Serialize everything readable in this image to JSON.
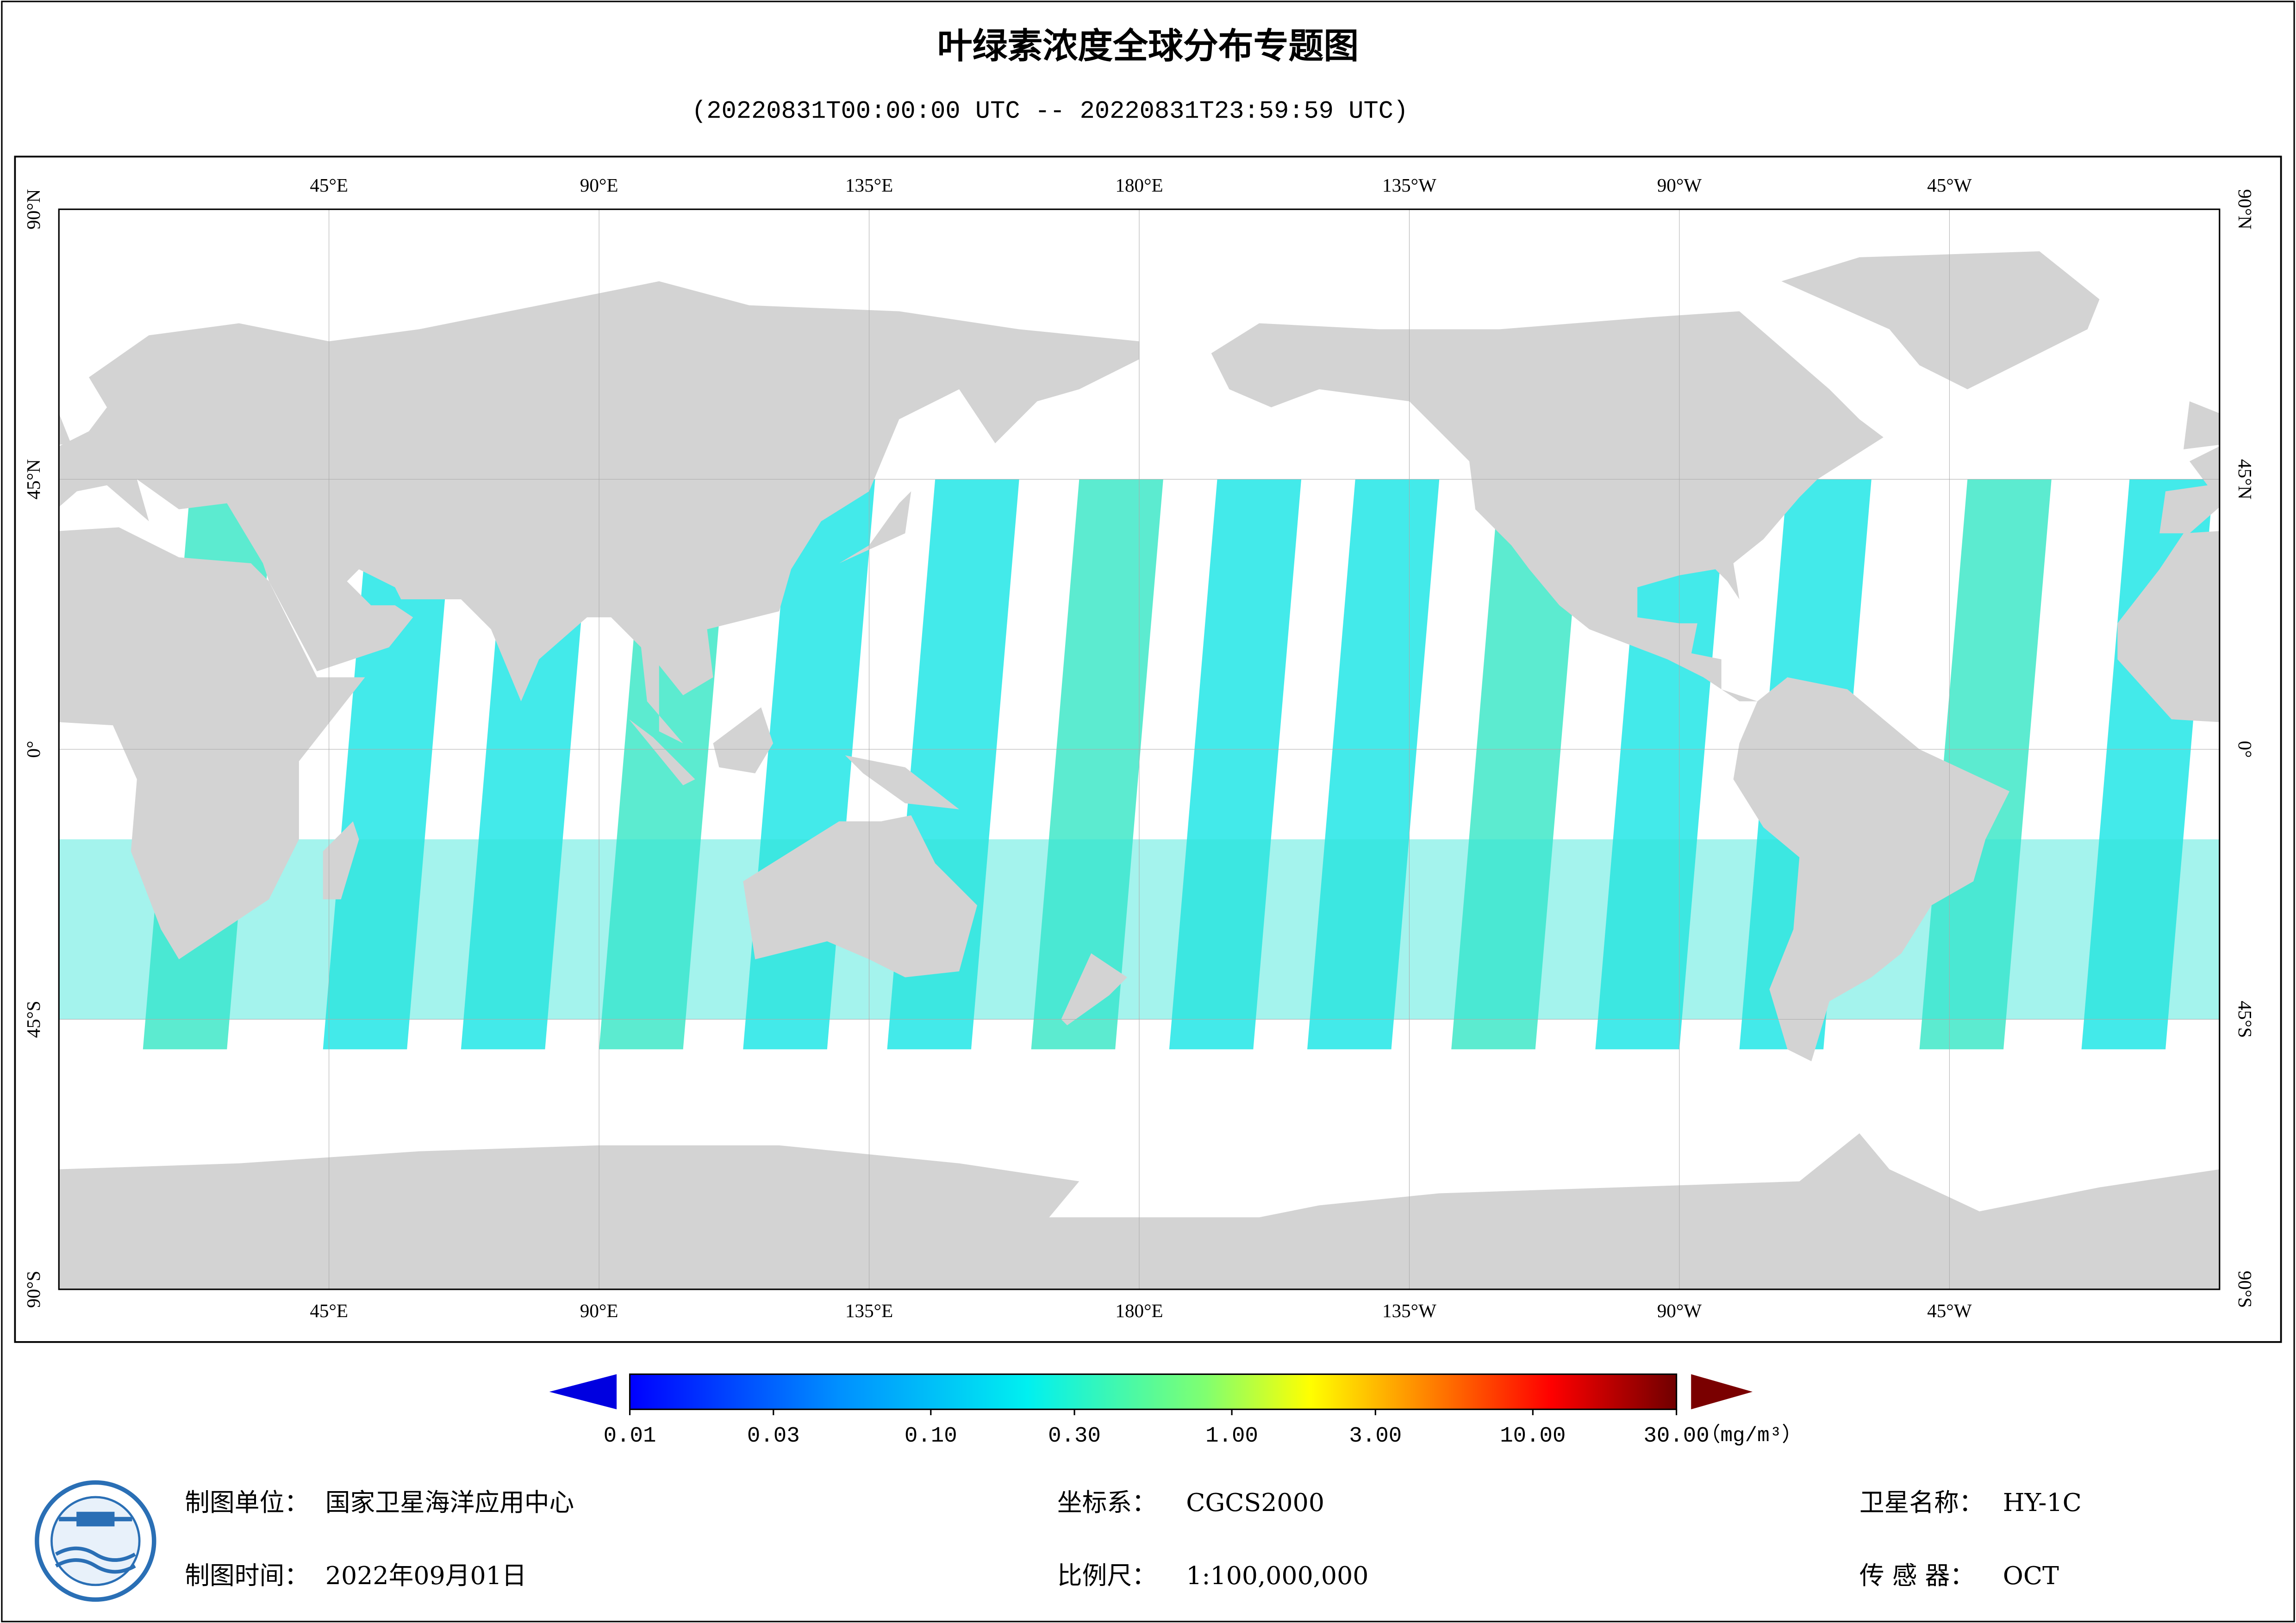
{
  "header": {
    "title": "叶绿素浓度全球分布专题图",
    "subtitle": "(20220831T00:00:00 UTC -- 20220831T23:59:59 UTC)"
  },
  "map": {
    "lon_labels": [
      "45°E",
      "90°E",
      "135°E",
      "180°E",
      "135°W",
      "90°W",
      "45°W"
    ],
    "lat_labels": [
      "90°N",
      "45°N",
      "0°",
      "45°S",
      "90°S"
    ]
  },
  "colorbar": {
    "scale": "log",
    "range": [
      0.01,
      30
    ],
    "ticks": [
      {
        "value": 0.01,
        "label": "0.01"
      },
      {
        "value": 0.03,
        "label": "0.03"
      },
      {
        "value": 0.1,
        "label": "0.10"
      },
      {
        "value": 0.3,
        "label": "0.30"
      },
      {
        "value": 1,
        "label": "1.00"
      },
      {
        "value": 3,
        "label": "3.00"
      },
      {
        "value": 10,
        "label": "10.00"
      },
      {
        "value": 30,
        "label": "30.00"
      }
    ],
    "unit": "（mg/m³）"
  },
  "footer": {
    "producer": {
      "label": "制图单位：",
      "value": "国家卫星海洋应用中心"
    },
    "date": {
      "label": "制图时间：",
      "value": "2022年09月01日"
    },
    "crs": {
      "label": "坐标系：",
      "value": "CGCS2000"
    },
    "scale": {
      "label": "比例尺：",
      "value": "1:100,000,000"
    },
    "satellite": {
      "label": "卫星名称：",
      "value": "HY-1C"
    },
    "sensor": {
      "label": "传 感 器：",
      "value": "OCT"
    }
  }
}
